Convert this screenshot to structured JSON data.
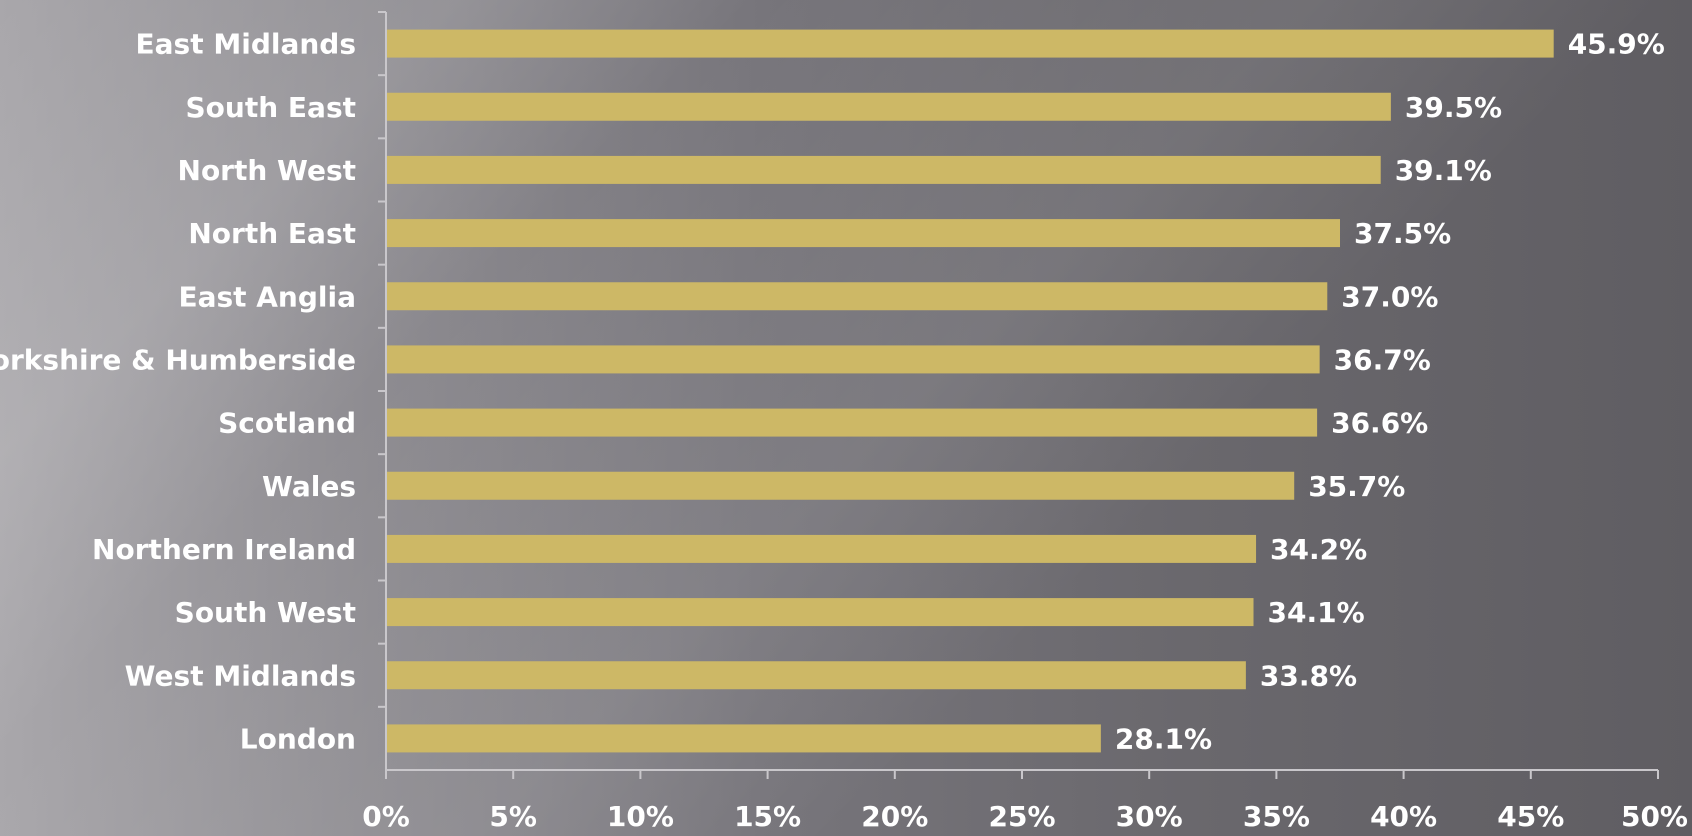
{
  "chart_data": {
    "type": "bar",
    "orientation": "horizontal",
    "title": "",
    "xlabel": "",
    "ylabel": "",
    "categories": [
      "East Midlands",
      "South East",
      "North West",
      "North East",
      "East Anglia",
      "Yorkshire & Humberside",
      "Scotland",
      "Wales",
      "Northern Ireland",
      "South West",
      "West Midlands",
      "London"
    ],
    "values": [
      45.9,
      39.5,
      39.1,
      37.5,
      37.0,
      36.7,
      36.6,
      35.7,
      34.2,
      34.1,
      33.8,
      28.1
    ],
    "value_labels": [
      "45.9%",
      "39.5%",
      "39.1%",
      "37.5%",
      "37.0%",
      "36.7%",
      "36.6%",
      "35.7%",
      "34.2%",
      "34.1%",
      "33.8%",
      "28.1%"
    ],
    "xlim": [
      0,
      50
    ],
    "x_ticks": [
      0,
      5,
      10,
      15,
      20,
      25,
      30,
      35,
      40,
      45,
      50
    ],
    "x_tick_labels": [
      "0%",
      "5%",
      "10%",
      "15%",
      "20%",
      "25%",
      "30%",
      "35%",
      "40%",
      "45%",
      "50%"
    ],
    "grid": false,
    "legend": "none",
    "bar_color": "#cdb866",
    "text_color": "#ffffff",
    "axis_color": "#c9c7cb"
  }
}
